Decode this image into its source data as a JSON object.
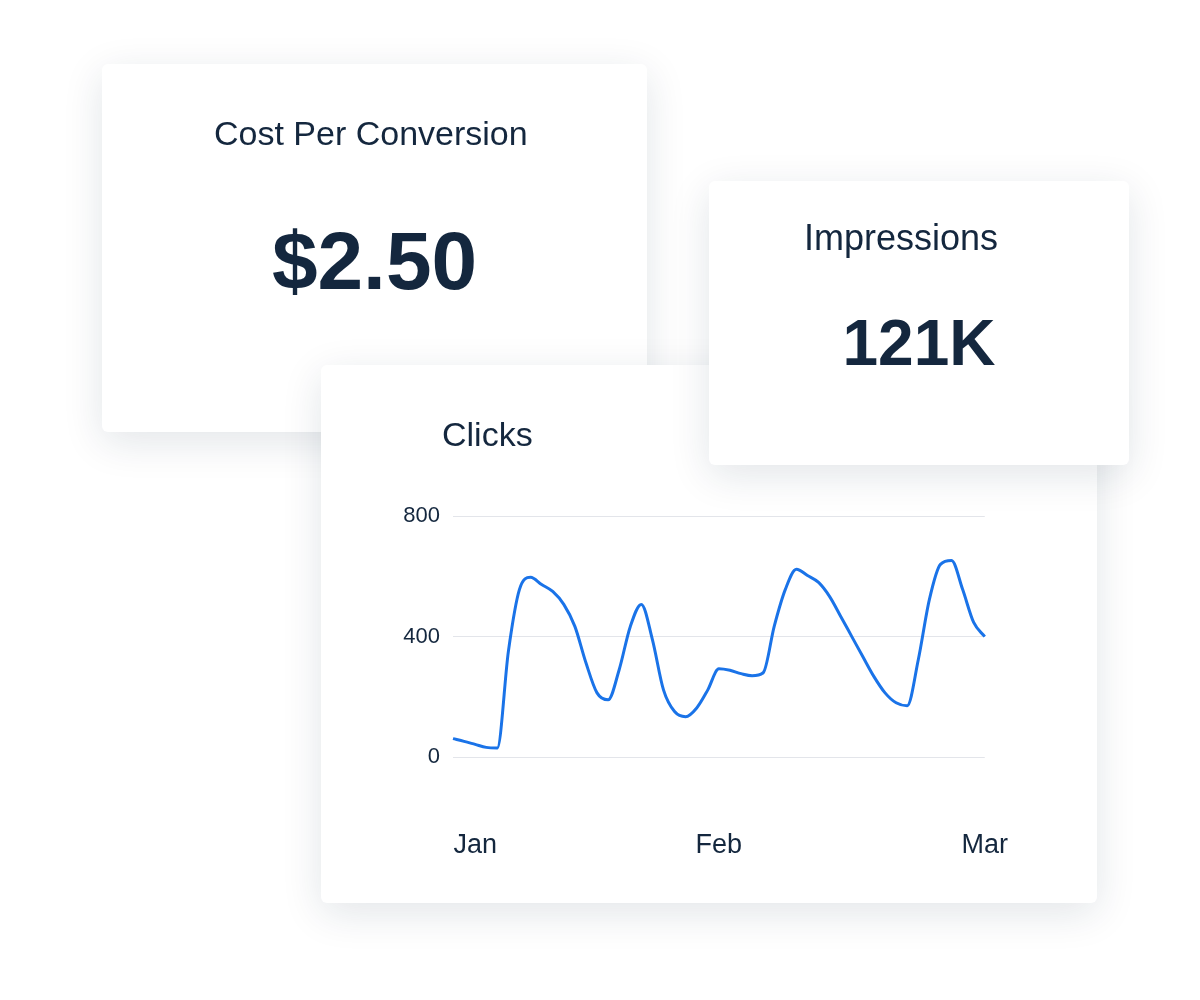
{
  "chart_data": [
    {
      "type": "other",
      "title": "Cost Per Conversion",
      "annotations": [
        "$2.50"
      ]
    },
    {
      "type": "other",
      "title": "Impressions",
      "annotations": [
        "121K"
      ]
    },
    {
      "type": "line",
      "title": "Clicks",
      "categories": [
        null,
        null,
        "Jan",
        null,
        null,
        null,
        null,
        null,
        null,
        null,
        null,
        null,
        null,
        null,
        null,
        null,
        null,
        null,
        null,
        null,
        null,
        null,
        null,
        null,
        "Feb",
        null,
        null,
        null,
        null,
        null,
        null,
        null,
        null,
        null,
        null,
        null,
        null,
        null,
        null,
        null,
        null,
        null,
        null,
        null,
        null,
        null,
        null,
        null,
        "Mar"
      ],
      "series": [
        {
          "color": "#1a73e8",
          "values": [
            61,
            52,
            42,
            32,
            30,
            351,
            557,
            597,
            573,
            550,
            507,
            434,
            313,
            213,
            190,
            290,
            433,
            507,
            390,
            223,
            151,
            134,
            163,
            223,
            293,
            288,
            277,
            270,
            280,
            435,
            557,
            624,
            603,
            580,
            533,
            467,
            400,
            333,
            267,
            213,
            180,
            170,
            323,
            523,
            640,
            653,
            557,
            447,
            400
          ]
        }
      ],
      "ylim": [
        0,
        800
      ],
      "yticks": [
        0,
        400,
        800
      ],
      "grid": "y",
      "legend": false,
      "marker": "none",
      "line_style": "solid"
    }
  ]
}
